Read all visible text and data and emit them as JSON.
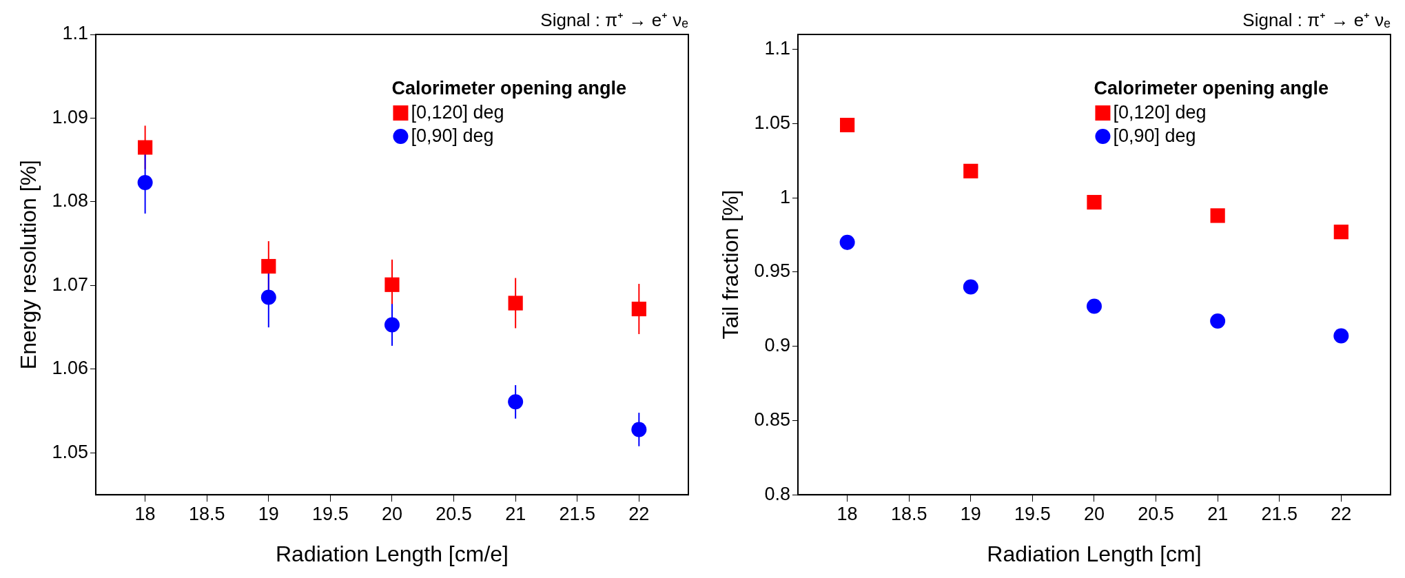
{
  "chart_data": [
    {
      "type": "scatter",
      "xlabel": "Radiation Length [cm/e]",
      "ylabel": "Energy resolution [%]",
      "legend_title": "Calorimeter opening angle",
      "legend": "top right",
      "grid": false,
      "annotations": [
        "Signal : π⁺ → e⁺ νₑ"
      ],
      "xlim": [
        17.6,
        22.4
      ],
      "xticks": [
        18,
        18.5,
        19,
        19.5,
        20,
        20.5,
        21,
        21.5,
        22
      ],
      "ylim": [
        1.045,
        1.1
      ],
      "yticks": [
        1.05,
        1.06,
        1.07,
        1.08,
        1.09,
        1.1
      ],
      "x": [
        18,
        19,
        20,
        21,
        22
      ],
      "series": [
        {
          "name": "[0,120] deg",
          "color": "#ff0000",
          "marker": "square",
          "values": [
            1.0865,
            1.0723,
            1.0701,
            1.0679,
            1.0672
          ],
          "errors": [
            0.0026,
            0.003,
            0.003,
            0.003,
            0.003
          ]
        },
        {
          "name": "[0,90] deg",
          "color": "#0000ff",
          "marker": "circle",
          "values": [
            1.0823,
            1.0686,
            1.0653,
            1.0561,
            1.0528
          ],
          "errors": [
            0.0037,
            0.0036,
            0.0025,
            0.002,
            0.002
          ]
        }
      ]
    },
    {
      "type": "scatter",
      "xlabel": "Radiation Length [cm]",
      "ylabel": "Tail fraction [%]",
      "legend_title": "Calorimeter opening angle",
      "legend": "top right",
      "grid": false,
      "annotations": [
        "Signal : π⁺ → e⁺ νₑ"
      ],
      "xlim": [
        17.6,
        22.4
      ],
      "xticks": [
        18,
        18.5,
        19,
        19.5,
        20,
        20.5,
        21,
        21.5,
        22
      ],
      "ylim": [
        0.8,
        1.11
      ],
      "yticks": [
        0.8,
        0.85,
        0.9,
        0.95,
        1,
        1.05,
        1.1
      ],
      "x": [
        18,
        19,
        20,
        21,
        22
      ],
      "series": [
        {
          "name": "[0,120] deg",
          "color": "#ff0000",
          "marker": "square",
          "values": [
            1.049,
            1.018,
            0.997,
            0.988,
            0.977
          ]
        },
        {
          "name": "[0,90] deg",
          "color": "#0000ff",
          "marker": "circle",
          "values": [
            0.97,
            0.94,
            0.927,
            0.917,
            0.907
          ],
          "errors": [
            0.005,
            null,
            null,
            null,
            null
          ]
        }
      ]
    }
  ]
}
